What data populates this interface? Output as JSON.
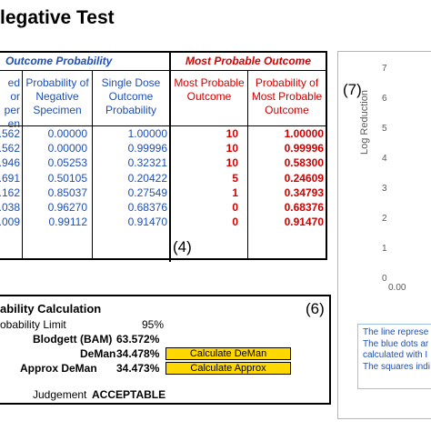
{
  "title": "legative Test",
  "table": {
    "header_outcome": "Outcome Probability",
    "header_most": "Most Probable Outcome",
    "col0_lines": [
      "ed",
      "or",
      "per",
      "en"
    ],
    "col1": "Probability of Negative Specimen",
    "col2": "Single Dose Outcome Probability",
    "col3": "Most Probable Outcome",
    "col4": "Probability of Most Probable Outcome",
    "rows": [
      {
        "c0": ".562",
        "c1": "0.00000",
        "c2": "1.00000",
        "c3": "10",
        "c4": "1.00000"
      },
      {
        "c0": ".562",
        "c1": "0.00000",
        "c2": "0.99996",
        "c3": "10",
        "c4": "0.99996"
      },
      {
        "c0": ".946",
        "c1": "0.05253",
        "c2": "0.32321",
        "c3": "10",
        "c4": "0.58300"
      },
      {
        "c0": ".691",
        "c1": "0.50105",
        "c2": "0.20422",
        "c3": "5",
        "c4": "0.24609"
      },
      {
        "c0": ".162",
        "c1": "0.85037",
        "c2": "0.27549",
        "c3": "1",
        "c4": "0.34793"
      },
      {
        "c0": ".038",
        "c1": "0.96270",
        "c2": "0.68376",
        "c3": "0",
        "c4": "0.68376"
      },
      {
        "c0": ".009",
        "c1": "0.99112",
        "c2": "0.91470",
        "c3": "0",
        "c4": "0.91470"
      }
    ],
    "label": "(4)"
  },
  "calc": {
    "title": "ability Calculation",
    "label": "(6)",
    "limit_label": "obability Limit",
    "limit_value": "95%",
    "bam_label": "Blodgett (BAM)",
    "bam_value": "63.572%",
    "deman_label": "DeMan",
    "deman_value": "34.478%",
    "deman_button": "Calculate DeMan",
    "approx_label": "Approx DeMan",
    "approx_value": "34.473%",
    "approx_button": "Calculate Approx",
    "judgement_label": "Judgement",
    "judgement_value": "ACCEPTABLE"
  },
  "chart": {
    "label": "(7)",
    "ylabel": "Log Reduction",
    "yticks": [
      "7",
      "6",
      "5",
      "4",
      "3",
      "2",
      "1",
      "0"
    ],
    "xtick": "0.00",
    "legend_lines": [
      "The line represe",
      "The blue dots ar",
      "calculated with I",
      "The squares indi"
    ]
  }
}
